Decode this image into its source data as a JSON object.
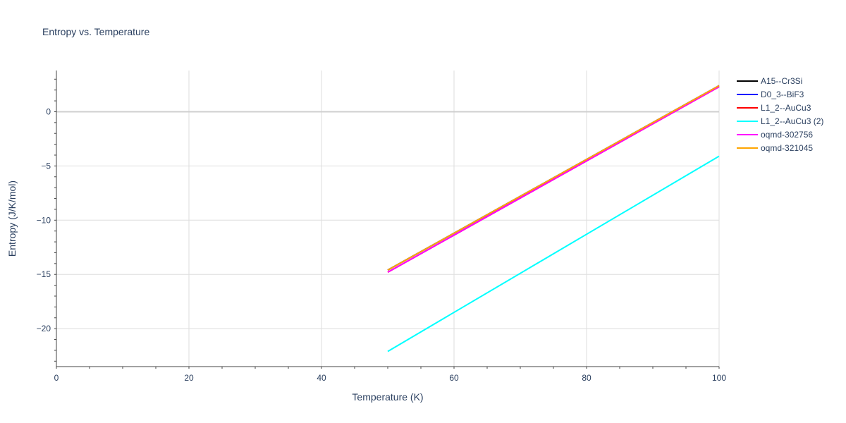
{
  "chart_data": {
    "type": "line",
    "title": "Entropy vs. Temperature",
    "xlabel": "Temperature (K)",
    "ylabel": "Entropy (J/K/mol)",
    "xlim": [
      0,
      100
    ],
    "ylim": [
      -23.5,
      3.8
    ],
    "x_ticks": [
      0,
      20,
      40,
      60,
      80,
      100
    ],
    "y_ticks": [
      -20,
      -15,
      -10,
      -5,
      0
    ],
    "y_tick_labels": [
      "−20",
      "−15",
      "−10",
      "−5",
      "0"
    ],
    "grid": true,
    "legend_position": "right",
    "series": [
      {
        "name": "A15--Cr3Si",
        "color": "#000000",
        "x": [
          50,
          100
        ],
        "y": [
          -14.6,
          2.4
        ]
      },
      {
        "name": "D0_3--BiF3",
        "color": "#0000ff",
        "x": [
          50,
          100
        ],
        "y": [
          -14.6,
          2.4
        ]
      },
      {
        "name": "L1_2--AuCu3",
        "color": "#ff0000",
        "x": [
          50,
          100
        ],
        "y": [
          -14.8,
          2.3
        ]
      },
      {
        "name": "L1_2--AuCu3 (2)",
        "color": "#00ffff",
        "x": [
          50,
          100
        ],
        "y": [
          -22.1,
          -4.1
        ]
      },
      {
        "name": "oqmd-302756",
        "color": "#ff00ff",
        "x": [
          50,
          100
        ],
        "y": [
          -14.8,
          2.3
        ]
      },
      {
        "name": "oqmd-321045",
        "color": "#ffa500",
        "x": [
          50,
          100
        ],
        "y": [
          -14.6,
          2.4
        ]
      }
    ]
  }
}
